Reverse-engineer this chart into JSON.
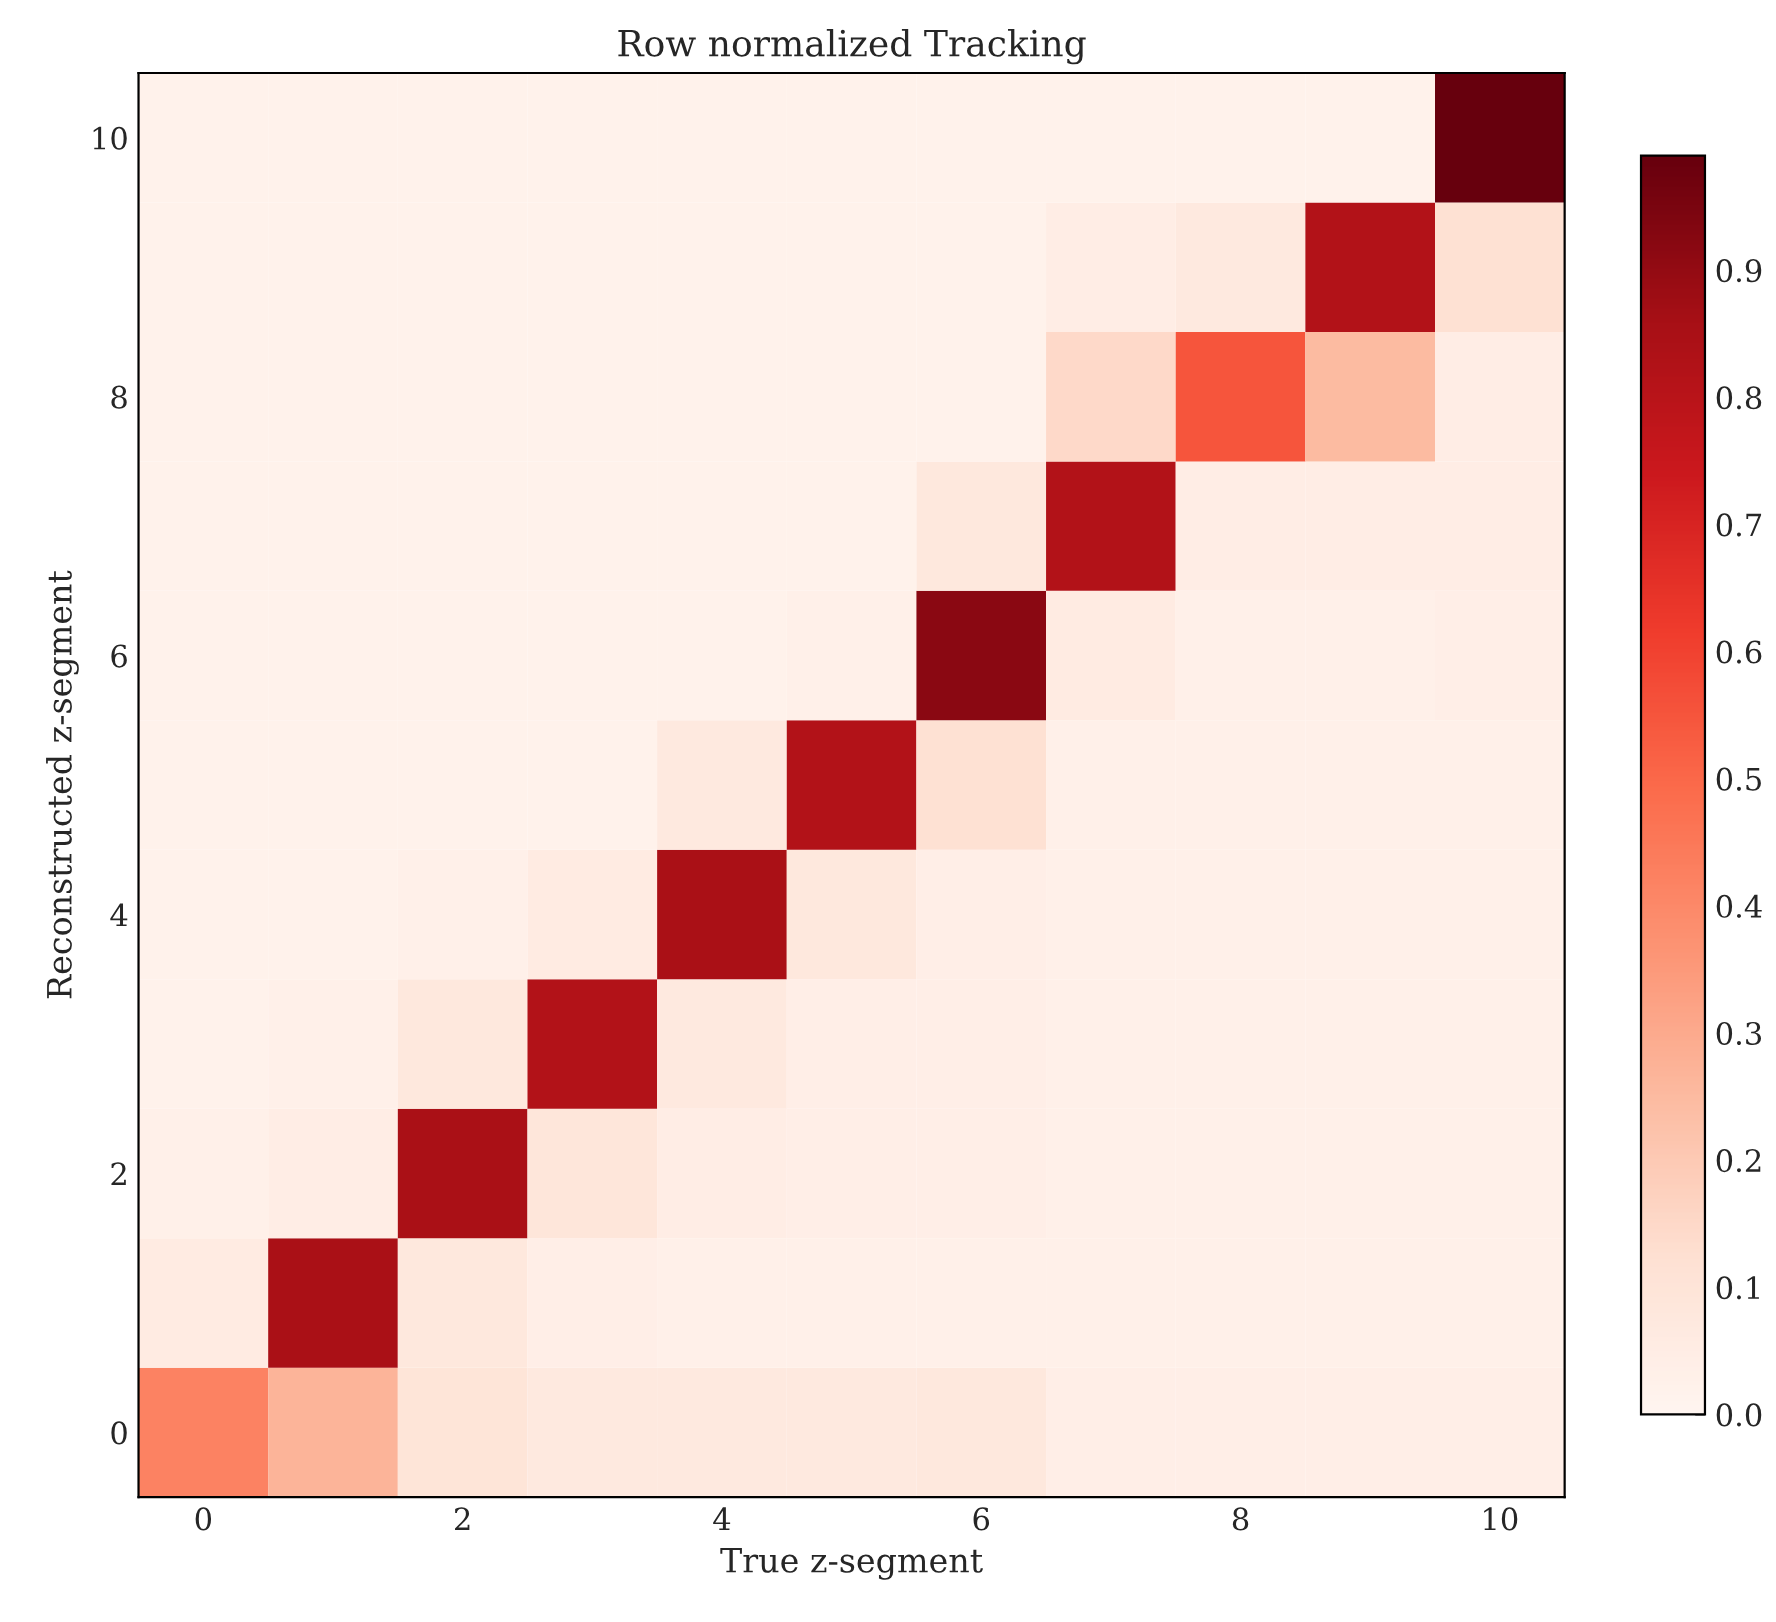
{
  "chart_data": {
    "type": "heatmap",
    "title": "Row normalized Tracking",
    "xlabel": "True z-segment",
    "ylabel": "Reconstructed z-segment",
    "categories": [
      "0",
      null,
      "2",
      null,
      "4",
      null,
      "6",
      null,
      "8",
      null,
      "10"
    ],
    "y_categories": [
      "10",
      null,
      "8",
      null,
      "6",
      null,
      "4",
      null,
      "2",
      null,
      "0"
    ],
    "cells": [
      [
        0.02,
        0.02,
        0.02,
        0.02,
        0.02,
        0.02,
        0.02,
        0.02,
        0.02,
        0.02,
        0.99
      ],
      [
        0.02,
        0.02,
        0.02,
        0.02,
        0.02,
        0.02,
        0.02,
        0.05,
        0.07,
        0.82,
        0.12
      ],
      [
        0.02,
        0.02,
        0.02,
        0.02,
        0.02,
        0.02,
        0.02,
        0.15,
        0.55,
        0.25,
        0.05
      ],
      [
        0.02,
        0.02,
        0.02,
        0.02,
        0.02,
        0.02,
        0.08,
        0.82,
        0.05,
        0.05,
        0.05
      ],
      [
        0.02,
        0.02,
        0.02,
        0.02,
        0.02,
        0.03,
        0.92,
        0.06,
        0.03,
        0.03,
        0.04
      ],
      [
        0.02,
        0.02,
        0.02,
        0.02,
        0.07,
        0.82,
        0.12,
        0.03,
        0.03,
        0.03,
        0.03
      ],
      [
        0.02,
        0.02,
        0.03,
        0.06,
        0.85,
        0.08,
        0.04,
        0.03,
        0.03,
        0.03,
        0.03
      ],
      [
        0.02,
        0.03,
        0.08,
        0.82,
        0.07,
        0.04,
        0.04,
        0.03,
        0.03,
        0.03,
        0.03
      ],
      [
        0.03,
        0.05,
        0.85,
        0.09,
        0.05,
        0.04,
        0.04,
        0.03,
        0.03,
        0.03,
        0.03
      ],
      [
        0.06,
        0.85,
        0.08,
        0.04,
        0.03,
        0.03,
        0.03,
        0.03,
        0.03,
        0.03,
        0.03
      ],
      [
        0.42,
        0.27,
        0.1,
        0.07,
        0.07,
        0.07,
        0.08,
        0.04,
        0.04,
        0.04,
        0.04
      ]
    ],
    "clim": [
      0,
      0.99
    ],
    "cticks": [
      {
        "value": 0,
        "label": "0.0"
      },
      0.1,
      0.2,
      0.3,
      0.4,
      0.5,
      0.6,
      0.7,
      0.8,
      0.9
    ]
  }
}
